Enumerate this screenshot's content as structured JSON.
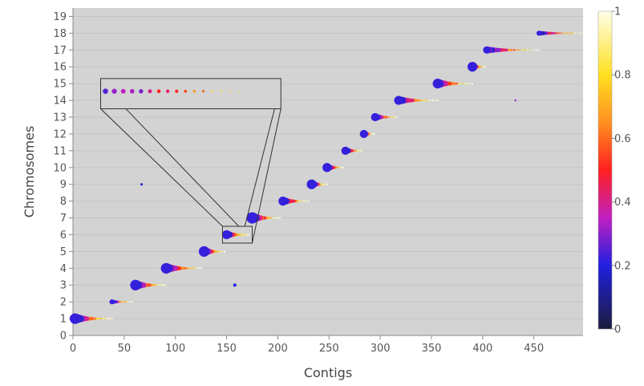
{
  "chart_data": {
    "type": "scatter",
    "title": "",
    "xlabel": "Contigs",
    "ylabel": "Chromosomes",
    "xlim": [
      0,
      498
    ],
    "ylim": [
      0,
      19.5
    ],
    "x_ticks": [
      0,
      50,
      100,
      150,
      200,
      250,
      300,
      350,
      400,
      450
    ],
    "y_ticks": [
      0,
      1,
      2,
      3,
      4,
      5,
      6,
      7,
      8,
      9,
      10,
      11,
      12,
      13,
      14,
      15,
      16,
      17,
      18,
      19
    ],
    "grid": true,
    "background": "#d3d3d3",
    "colorbar": {
      "min": 0,
      "max": 1,
      "ticks": [
        0,
        0.2,
        0.4,
        0.6,
        0.8,
        1
      ],
      "tick_labels": [
        "0",
        "0.2",
        "0.4",
        "0.6",
        "0.8",
        "1"
      ],
      "colors": [
        "#1c1c3c",
        "#2020e0",
        "#c020c0",
        "#ff2020",
        "#ff9020",
        "#ffe020",
        "#ffffe8"
      ]
    },
    "clusters": [
      {
        "chromosome": 1,
        "x_start": 2,
        "x_end": 38,
        "count": 20,
        "max_size": 12
      },
      {
        "chromosome": 2,
        "x_start": 38,
        "x_end": 58,
        "count": 10,
        "max_size": 5
      },
      {
        "chromosome": 3,
        "x_start": 61,
        "x_end": 90,
        "count": 16,
        "max_size": 12
      },
      {
        "chromosome": 4,
        "x_start": 91,
        "x_end": 125,
        "count": 18,
        "max_size": 12
      },
      {
        "chromosome": 5,
        "x_start": 128,
        "x_end": 148,
        "count": 12,
        "max_size": 12
      },
      {
        "chromosome": 6,
        "x_start": 150,
        "x_end": 172,
        "count": 14,
        "max_size": 10
      },
      {
        "chromosome": 7,
        "x_start": 175,
        "x_end": 202,
        "count": 16,
        "max_size": 13
      },
      {
        "chromosome": 8,
        "x_start": 205,
        "x_end": 230,
        "count": 14,
        "max_size": 10
      },
      {
        "chromosome": 9,
        "x_start": 233,
        "x_end": 248,
        "count": 10,
        "max_size": 11
      },
      {
        "chromosome": 10,
        "x_start": 248,
        "x_end": 264,
        "count": 10,
        "max_size": 10
      },
      {
        "chromosome": 11,
        "x_start": 266,
        "x_end": 282,
        "count": 10,
        "max_size": 9
      },
      {
        "chromosome": 12,
        "x_start": 284,
        "x_end": 294,
        "count": 7,
        "max_size": 9
      },
      {
        "chromosome": 13,
        "x_start": 295,
        "x_end": 316,
        "count": 12,
        "max_size": 9
      },
      {
        "chromosome": 14,
        "x_start": 318,
        "x_end": 356,
        "count": 18,
        "max_size": 10
      },
      {
        "chromosome": 15,
        "x_start": 356,
        "x_end": 390,
        "count": 16,
        "max_size": 11
      },
      {
        "chromosome": 16,
        "x_start": 390,
        "x_end": 402,
        "count": 8,
        "max_size": 11
      },
      {
        "chromosome": 17,
        "x_start": 404,
        "x_end": 455,
        "count": 22,
        "max_size": 8
      },
      {
        "chromosome": 18,
        "x_start": 455,
        "x_end": 498,
        "count": 20,
        "max_size": 5
      }
    ],
    "outliers": [
      {
        "x": 67,
        "y": 9,
        "value": 0.2,
        "size": 1.5
      },
      {
        "x": 158,
        "y": 3,
        "value": 0.2,
        "size": 2
      },
      {
        "x": 432,
        "y": 14,
        "value": 0.3,
        "size": 1.2
      }
    ],
    "annotations": [
      {
        "type": "zoom-box",
        "x_range": [
          146,
          175
        ],
        "y_range": [
          5.5,
          6.5
        ]
      },
      {
        "type": "inset",
        "x_range": [
          27,
          203
        ],
        "y_range": [
          13.5,
          15.3
        ]
      }
    ]
  }
}
